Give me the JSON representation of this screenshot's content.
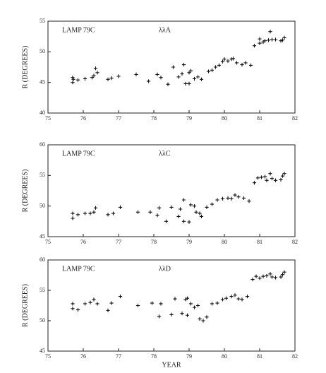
{
  "chart_data": [
    {
      "type": "scatter",
      "annotation": "LAMP 79C",
      "title": "λλA",
      "ylabel": "R (DEGREES)",
      "x": [
        75.7,
        75.7,
        75.72,
        75.85,
        76.05,
        76.25,
        76.3,
        76.35,
        76.4,
        76.7,
        76.8,
        77.0,
        77.5,
        77.85,
        78.1,
        78.2,
        78.4,
        78.55,
        78.7,
        78.8,
        78.85,
        78.9,
        79.0,
        79.0,
        79.05,
        79.15,
        79.25,
        79.35,
        79.55,
        79.65,
        79.75,
        79.85,
        79.95,
        80.0,
        80.1,
        80.2,
        80.25,
        80.35,
        80.5,
        80.6,
        80.75,
        80.85,
        81.0,
        81.0,
        81.1,
        81.15,
        81.25,
        81.3,
        81.35,
        81.45,
        81.6,
        81.65,
        81.7
      ],
      "values": [
        45.0,
        45.8,
        45.5,
        45.4,
        45.6,
        45.8,
        46.1,
        47.3,
        46.6,
        45.5,
        45.7,
        46.0,
        46.3,
        45.2,
        46.3,
        45.8,
        44.7,
        47.5,
        45.9,
        46.4,
        47.9,
        44.8,
        44.8,
        46.6,
        46.9,
        45.6,
        45.9,
        45.5,
        46.8,
        47.0,
        47.5,
        47.8,
        48.4,
        48.8,
        48.5,
        48.8,
        48.9,
        48.2,
        47.9,
        48.2,
        47.8,
        51.0,
        51.4,
        52.1,
        51.6,
        51.8,
        51.9,
        53.3,
        52.0,
        52.0,
        51.8,
        51.9,
        52.3
      ],
      "xlim": [
        75,
        82
      ],
      "ylim": [
        40,
        55
      ],
      "xticks": [
        75,
        76,
        77,
        78,
        79,
        80,
        81,
        82
      ],
      "yticks": [
        40,
        45,
        50,
        55
      ],
      "color": "#111111"
    },
    {
      "type": "scatter",
      "annotation": "LAMP 79C",
      "title": "λλC",
      "ylabel": "R (DEGREES)",
      "x": [
        75.7,
        75.7,
        75.85,
        76.05,
        76.2,
        76.3,
        76.35,
        76.7,
        76.85,
        77.05,
        77.55,
        77.9,
        78.1,
        78.15,
        78.35,
        78.5,
        78.7,
        78.75,
        78.85,
        78.85,
        79.0,
        79.05,
        79.15,
        79.2,
        79.3,
        79.35,
        79.5,
        79.65,
        79.8,
        79.95,
        80.1,
        80.2,
        80.3,
        80.4,
        80.55,
        80.7,
        80.85,
        80.95,
        81.05,
        81.15,
        81.2,
        81.3,
        81.35,
        81.45,
        81.6,
        81.65,
        81.7
      ],
      "values": [
        48.0,
        48.8,
        48.6,
        48.8,
        48.8,
        49.0,
        49.7,
        48.6,
        48.8,
        49.8,
        49.0,
        49.0,
        48.5,
        49.7,
        47.5,
        49.8,
        48.3,
        49.5,
        51.0,
        47.5,
        47.4,
        50.2,
        50.0,
        49.0,
        48.8,
        48.3,
        49.8,
        50.3,
        51.0,
        51.2,
        51.3,
        51.2,
        51.8,
        51.5,
        51.3,
        50.8,
        53.8,
        54.6,
        54.7,
        54.8,
        54.2,
        55.3,
        54.5,
        54.2,
        54.3,
        54.9,
        55.3
      ],
      "xlim": [
        75,
        82
      ],
      "ylim": [
        45,
        60
      ],
      "xticks": [
        75,
        76,
        77,
        78,
        79,
        80,
        81,
        82
      ],
      "yticks": [
        45,
        50,
        55,
        60
      ],
      "color": "#111111"
    },
    {
      "type": "scatter",
      "annotation": "LAMP 79C",
      "title": "λλD",
      "ylabel": "R (DEGREES)",
      "xlabel": "YEAR",
      "x": [
        75.7,
        75.7,
        75.85,
        76.05,
        76.2,
        76.3,
        76.4,
        76.7,
        76.8,
        77.05,
        77.55,
        77.95,
        78.15,
        78.2,
        78.5,
        78.6,
        78.8,
        78.9,
        78.95,
        78.95,
        79.05,
        79.15,
        79.25,
        79.3,
        79.4,
        79.5,
        79.65,
        79.8,
        79.95,
        80.05,
        80.2,
        80.3,
        80.4,
        80.5,
        80.65,
        80.8,
        80.9,
        81.0,
        81.1,
        81.2,
        81.3,
        81.35,
        81.45,
        81.6,
        81.65,
        81.7
      ],
      "values": [
        52.8,
        52.0,
        51.8,
        52.8,
        53.0,
        53.5,
        52.8,
        51.7,
        52.9,
        54.0,
        52.5,
        52.9,
        50.7,
        52.8,
        51.0,
        53.6,
        51.2,
        53.5,
        50.9,
        53.7,
        52.8,
        52.2,
        52.5,
        50.3,
        50.0,
        50.6,
        52.8,
        52.9,
        53.5,
        53.7,
        54.0,
        54.2,
        53.6,
        53.5,
        54.0,
        56.8,
        57.3,
        57.0,
        57.3,
        57.4,
        57.7,
        57.2,
        57.1,
        57.2,
        57.6,
        58.0
      ],
      "xlim": [
        75,
        82
      ],
      "ylim": [
        45,
        60
      ],
      "xticks": [
        75,
        76,
        77,
        78,
        79,
        80,
        81,
        82
      ],
      "yticks": [
        45,
        50,
        55,
        60
      ],
      "color": "#111111"
    }
  ]
}
